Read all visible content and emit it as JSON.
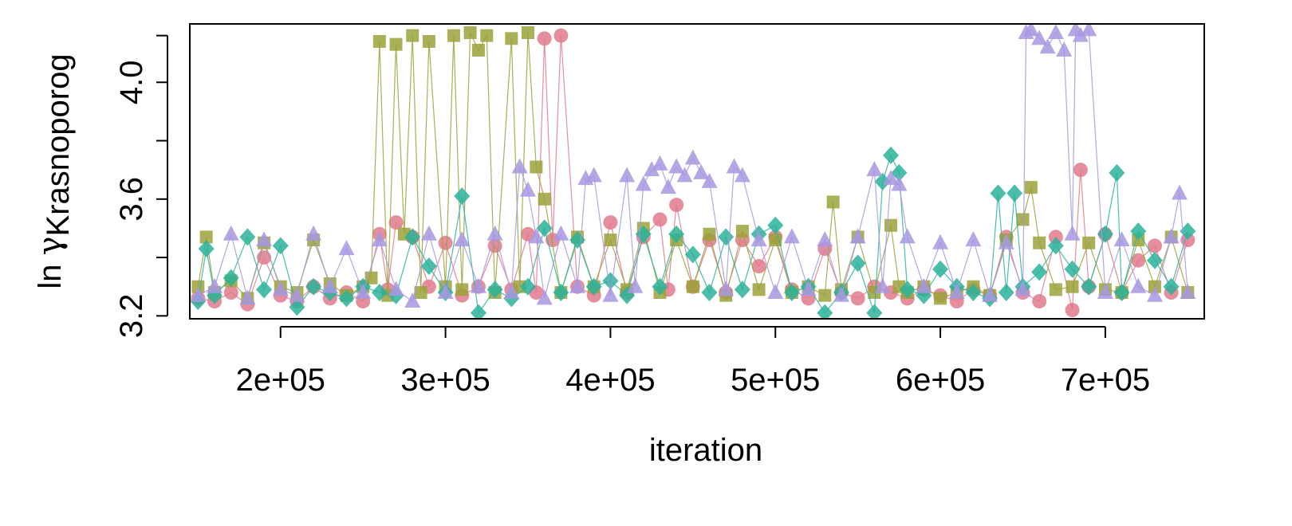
{
  "chart_data": {
    "type": "line",
    "markers": true,
    "title": "",
    "xlabel": "iteration",
    "ylabel": {
      "prefix": "ln ",
      "symbol": "γ",
      "subscript": "Krasnoporog"
    },
    "xlim": [
      145000,
      760000
    ],
    "ylim": [
      3.19,
      4.2
    ],
    "xticks": [
      200000,
      300000,
      400000,
      500000,
      600000,
      700000
    ],
    "xtick_labels": [
      "2e+05",
      "3e+05",
      "4e+05",
      "5e+05",
      "6e+05",
      "7e+05"
    ],
    "yticks": [
      3.2,
      3.6,
      4.0
    ],
    "ytick_labels": [
      "3.2",
      "3.6",
      "4.0"
    ],
    "yticks_minor": [
      3.4,
      3.8
    ],
    "grid": false,
    "legend": "none",
    "series": [
      {
        "marker": "circle",
        "color": "#E07A8C",
        "x": [
          150000,
          160000,
          170000,
          180000,
          190000,
          200000,
          210000,
          220000,
          230000,
          240000,
          250000,
          260000,
          265000,
          270000,
          280000,
          290000,
          300000,
          310000,
          320000,
          330000,
          340000,
          350000,
          355000,
          360000,
          365000,
          370000,
          380000,
          390000,
          400000,
          410000,
          420000,
          430000,
          435000,
          440000,
          450000,
          460000,
          470000,
          480000,
          490000,
          500000,
          510000,
          520000,
          530000,
          540000,
          550000,
          560000,
          570000,
          580000,
          590000,
          600000,
          610000,
          620000,
          630000,
          640000,
          650000,
          660000,
          670000,
          680000,
          685000,
          690000,
          700000,
          710000,
          720000,
          730000,
          740000,
          750000
        ],
        "y": [
          3.26,
          3.25,
          3.28,
          3.24,
          3.4,
          3.27,
          3.25,
          3.3,
          3.26,
          3.28,
          3.25,
          3.48,
          3.29,
          3.52,
          3.47,
          3.3,
          3.45,
          3.27,
          3.3,
          3.44,
          3.29,
          3.48,
          3.28,
          4.15,
          3.46,
          4.16,
          3.3,
          3.27,
          3.52,
          3.28,
          3.47,
          3.53,
          3.29,
          3.58,
          3.3,
          3.46,
          3.28,
          3.46,
          3.37,
          3.47,
          3.29,
          3.26,
          3.43,
          3.28,
          3.26,
          3.3,
          3.28,
          3.26,
          3.29,
          3.27,
          3.25,
          3.29,
          3.27,
          3.47,
          3.28,
          3.25,
          3.47,
          3.22,
          3.7,
          3.3,
          3.48,
          3.28,
          3.39,
          3.44,
          3.28,
          3.46
        ]
      },
      {
        "marker": "square",
        "color": "#9BA23A",
        "x": [
          150000,
          155000,
          160000,
          170000,
          180000,
          190000,
          200000,
          210000,
          220000,
          230000,
          240000,
          250000,
          255000,
          260000,
          265000,
          270000,
          275000,
          280000,
          285000,
          290000,
          300000,
          305000,
          310000,
          315000,
          320000,
          325000,
          330000,
          340000,
          345000,
          350000,
          355000,
          360000,
          370000,
          380000,
          390000,
          400000,
          410000,
          420000,
          430000,
          440000,
          450000,
          460000,
          470000,
          480000,
          490000,
          500000,
          510000,
          520000,
          530000,
          535000,
          540000,
          550000,
          560000,
          570000,
          575000,
          580000,
          590000,
          600000,
          610000,
          620000,
          630000,
          640000,
          650000,
          655000,
          660000,
          670000,
          680000,
          690000,
          700000,
          710000,
          720000,
          730000,
          740000,
          750000
        ],
        "y": [
          3.3,
          3.47,
          3.28,
          3.32,
          3.26,
          3.45,
          3.3,
          3.28,
          3.46,
          3.31,
          3.27,
          3.3,
          3.33,
          4.14,
          3.27,
          4.13,
          3.48,
          4.16,
          3.28,
          4.14,
          3.3,
          4.16,
          3.29,
          4.17,
          4.11,
          4.16,
          3.28,
          4.15,
          3.3,
          4.17,
          3.71,
          3.6,
          3.28,
          3.47,
          3.3,
          3.46,
          3.29,
          3.5,
          3.28,
          3.46,
          3.3,
          3.48,
          3.27,
          3.49,
          3.29,
          3.46,
          3.28,
          3.3,
          3.27,
          3.59,
          3.29,
          3.47,
          3.28,
          3.51,
          3.3,
          3.28,
          3.3,
          3.26,
          3.28,
          3.3,
          3.27,
          3.46,
          3.53,
          3.64,
          3.45,
          3.29,
          3.3,
          3.45,
          3.29,
          3.28,
          3.46,
          3.3,
          3.47,
          3.28
        ]
      },
      {
        "marker": "diamond",
        "color": "#2BB39A",
        "x": [
          150000,
          155000,
          160000,
          170000,
          180000,
          190000,
          200000,
          210000,
          220000,
          230000,
          240000,
          250000,
          260000,
          270000,
          280000,
          290000,
          300000,
          310000,
          320000,
          330000,
          340000,
          350000,
          360000,
          370000,
          380000,
          390000,
          400000,
          410000,
          420000,
          430000,
          440000,
          450000,
          460000,
          470000,
          480000,
          490000,
          500000,
          510000,
          520000,
          530000,
          540000,
          550000,
          560000,
          565000,
          570000,
          575000,
          580000,
          590000,
          600000,
          610000,
          620000,
          630000,
          635000,
          640000,
          645000,
          650000,
          660000,
          670000,
          680000,
          690000,
          700000,
          707000,
          710000,
          720000,
          730000,
          740000,
          750000
        ],
        "y": [
          3.25,
          3.43,
          3.27,
          3.33,
          3.47,
          3.29,
          3.44,
          3.23,
          3.3,
          3.28,
          3.26,
          3.3,
          3.28,
          3.27,
          3.47,
          3.37,
          3.28,
          3.61,
          3.21,
          3.29,
          3.26,
          3.3,
          3.5,
          3.28,
          3.46,
          3.3,
          3.32,
          3.27,
          3.48,
          3.3,
          3.48,
          3.41,
          3.28,
          3.47,
          3.29,
          3.48,
          3.51,
          3.28,
          3.3,
          3.21,
          3.28,
          3.38,
          3.21,
          3.66,
          3.75,
          3.69,
          3.29,
          3.27,
          3.36,
          3.3,
          3.28,
          3.26,
          3.62,
          3.28,
          3.62,
          3.3,
          3.35,
          3.44,
          3.36,
          3.3,
          3.48,
          3.69,
          3.28,
          3.49,
          3.39,
          3.3,
          3.49
        ]
      },
      {
        "marker": "triangle",
        "color": "#A898E0",
        "x": [
          150000,
          160000,
          170000,
          180000,
          190000,
          200000,
          210000,
          220000,
          230000,
          240000,
          250000,
          260000,
          270000,
          280000,
          290000,
          300000,
          310000,
          320000,
          330000,
          340000,
          345000,
          350000,
          355000,
          360000,
          370000,
          380000,
          385000,
          390000,
          400000,
          410000,
          415000,
          420000,
          425000,
          430000,
          435000,
          440000,
          445000,
          450000,
          455000,
          460000,
          470000,
          475000,
          480000,
          490000,
          500000,
          510000,
          520000,
          530000,
          540000,
          550000,
          560000,
          565000,
          570000,
          575000,
          580000,
          590000,
          600000,
          610000,
          620000,
          630000,
          640000,
          650000,
          652000,
          655000,
          660000,
          665000,
          670000,
          675000,
          680000,
          682000,
          685000,
          690000,
          700000,
          710000,
          720000,
          730000,
          740000,
          745000,
          750000
        ],
        "y": [
          3.27,
          3.3,
          3.48,
          3.26,
          3.46,
          3.29,
          3.27,
          3.48,
          3.3,
          3.43,
          3.28,
          3.46,
          3.29,
          3.25,
          3.48,
          3.28,
          3.46,
          3.3,
          3.48,
          3.28,
          3.71,
          3.63,
          3.47,
          3.26,
          3.48,
          3.3,
          3.67,
          3.68,
          3.27,
          3.68,
          3.3,
          3.65,
          3.7,
          3.72,
          3.64,
          3.71,
          3.68,
          3.74,
          3.69,
          3.66,
          3.29,
          3.71,
          3.68,
          3.46,
          3.28,
          3.47,
          3.29,
          3.46,
          3.27,
          3.47,
          3.7,
          3.3,
          3.67,
          3.65,
          3.47,
          3.3,
          3.45,
          3.28,
          3.46,
          3.27,
          3.45,
          3.29,
          4.17,
          4.18,
          4.15,
          4.12,
          4.17,
          4.11,
          3.48,
          4.18,
          4.16,
          4.18,
          3.28,
          3.46,
          3.3,
          3.27,
          3.47,
          3.62,
          3.28
        ]
      }
    ]
  }
}
